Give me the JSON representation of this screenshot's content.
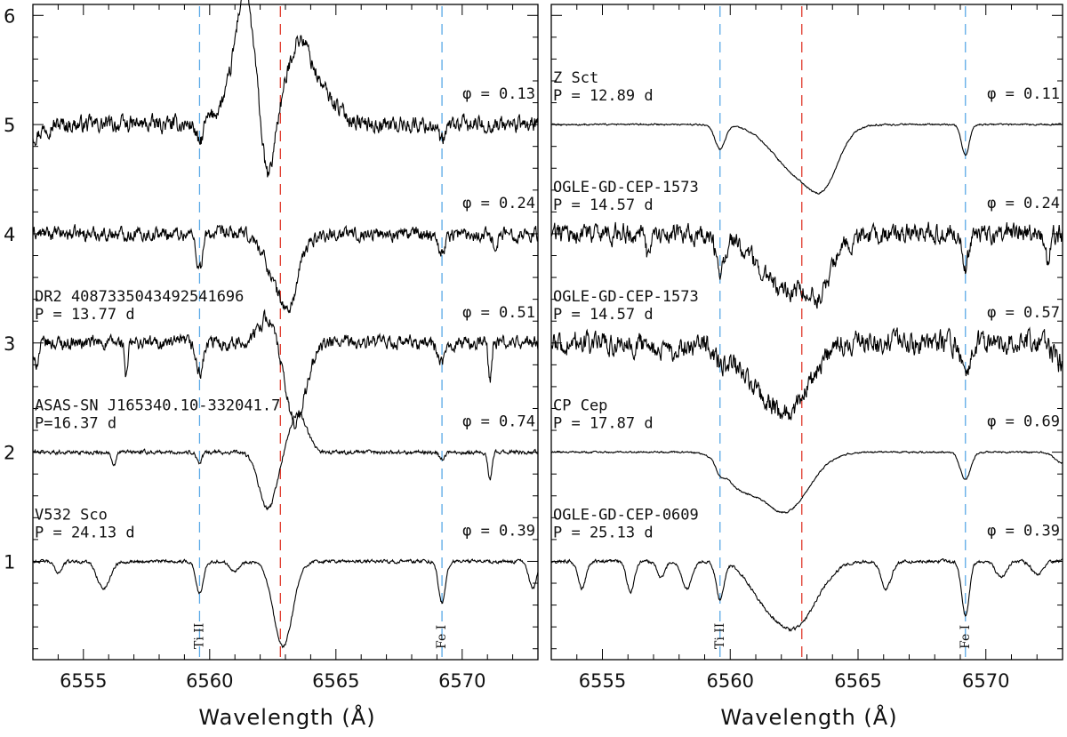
{
  "figure": {
    "xlabel": "Wavelength  (Å)"
  },
  "colors": {
    "spectrum": "#000000",
    "metal_line": "#5aa9e6",
    "halpha_line": "#e0392b",
    "axes": "#000000"
  },
  "chart_data": [
    {
      "type": "line",
      "panel": "left",
      "xlabel": "Wavelength  (Å)",
      "ylabel": "",
      "xlim": [
        6553.0,
        6573.0
      ],
      "ylim": [
        0.1,
        6.1
      ],
      "x_ticks": [
        6555,
        6560,
        6565,
        6570
      ],
      "y_ticks": [
        1,
        2,
        3,
        4,
        5,
        6
      ],
      "line_markers": [
        {
          "wavelength": 6559.6,
          "label": "Ti II",
          "color": "#5aa9e6"
        },
        {
          "wavelength": 6562.8,
          "label": "",
          "color": "#e0392b"
        },
        {
          "wavelength": 6569.2,
          "label": "Fe I",
          "color": "#5aa9e6"
        }
      ],
      "series": [
        {
          "name": "",
          "name2": "",
          "phase": "φ = 0.13",
          "offset": 5.0,
          "noise": 0.06,
          "features": [
            {
              "center": 6561.4,
              "depth": -1.0,
              "sigma": 0.35
            },
            {
              "center": 6561.0,
              "depth": -0.25,
              "sigma": 0.6
            },
            {
              "center": 6562.3,
              "depth": 0.55,
              "sigma": 0.22
            },
            {
              "center": 6563.5,
              "depth": -0.62,
              "sigma": 0.45
            },
            {
              "center": 6564.3,
              "depth": -0.3,
              "sigma": 0.7
            },
            {
              "center": 6559.6,
              "depth": 0.2,
              "sigma": 0.12
            },
            {
              "center": 6569.2,
              "depth": 0.17,
              "sigma": 0.13
            },
            {
              "center": 6553.0,
              "depth": 0.1,
              "sigma": 0.3
            }
          ]
        },
        {
          "name": "",
          "name2": "",
          "phase": "φ = 0.24",
          "offset": 4.0,
          "noise": 0.05,
          "features": [
            {
              "center": 6559.6,
              "depth": 0.32,
              "sigma": 0.12
            },
            {
              "center": 6562.9,
              "depth": 0.55,
              "sigma": 0.55
            },
            {
              "center": 6563.2,
              "depth": 0.2,
              "sigma": 0.25
            },
            {
              "center": 6569.2,
              "depth": 0.18,
              "sigma": 0.12
            },
            {
              "center": 6571.3,
              "depth": 0.1,
              "sigma": 0.1
            }
          ]
        },
        {
          "name": "DR2 4087335043492541696",
          "name2": "P = 13.77 d",
          "phase": "φ = 0.51",
          "offset": 3.0,
          "noise": 0.05,
          "features": [
            {
              "center": 6553.1,
              "depth": 0.2,
              "sigma": 0.12
            },
            {
              "center": 6556.7,
              "depth": 0.32,
              "sigma": 0.06
            },
            {
              "center": 6559.6,
              "depth": 0.28,
              "sigma": 0.14
            },
            {
              "center": 6562.3,
              "depth": -0.25,
              "sigma": 0.35
            },
            {
              "center": 6563.4,
              "depth": 0.72,
              "sigma": 0.42
            },
            {
              "center": 6569.2,
              "depth": 0.2,
              "sigma": 0.14
            },
            {
              "center": 6571.1,
              "depth": 0.32,
              "sigma": 0.06
            }
          ]
        },
        {
          "name": "ASAS-SN J165340.10-332041.7",
          "name2": "P=16.37 d",
          "phase": "φ = 0.74",
          "offset": 2.0,
          "noise": 0.015,
          "features": [
            {
              "center": 6556.2,
              "depth": 0.14,
              "sigma": 0.08
            },
            {
              "center": 6559.6,
              "depth": 0.1,
              "sigma": 0.1
            },
            {
              "center": 6562.3,
              "depth": 0.52,
              "sigma": 0.35
            },
            {
              "center": 6563.5,
              "depth": -0.35,
              "sigma": 0.35
            },
            {
              "center": 6569.2,
              "depth": 0.07,
              "sigma": 0.1
            },
            {
              "center": 6571.1,
              "depth": 0.25,
              "sigma": 0.08
            }
          ]
        },
        {
          "name": "V532 Sco",
          "name2": "P = 24.13 d",
          "phase": "φ = 0.39",
          "offset": 1.0,
          "noise": 0.012,
          "features": [
            {
              "center": 6554.0,
              "depth": 0.1,
              "sigma": 0.15
            },
            {
              "center": 6555.8,
              "depth": 0.25,
              "sigma": 0.25
            },
            {
              "center": 6559.6,
              "depth": 0.3,
              "sigma": 0.14
            },
            {
              "center": 6561.0,
              "depth": 0.08,
              "sigma": 0.2
            },
            {
              "center": 6562.9,
              "depth": 0.78,
              "sigma": 0.38
            },
            {
              "center": 6569.2,
              "depth": 0.38,
              "sigma": 0.14
            },
            {
              "center": 6572.8,
              "depth": 0.25,
              "sigma": 0.15
            }
          ]
        }
      ]
    },
    {
      "type": "line",
      "panel": "right",
      "xlabel": "Wavelength  (Å)",
      "ylabel": "",
      "xlim": [
        6553.0,
        6573.0
      ],
      "ylim": [
        0.1,
        6.1
      ],
      "x_ticks": [
        6555,
        6560,
        6565,
        6570
      ],
      "y_ticks": [
        1,
        2,
        3,
        4,
        5,
        6
      ],
      "line_markers": [
        {
          "wavelength": 6559.6,
          "label": "Ti II",
          "color": "#5aa9e6"
        },
        {
          "wavelength": 6562.8,
          "label": "",
          "color": "#e0392b"
        },
        {
          "wavelength": 6569.2,
          "label": "Fe I",
          "color": "#5aa9e6"
        }
      ],
      "series": [
        {
          "name": "Z Sct",
          "name2": "P = 12.89 d",
          "phase": "φ = 0.11",
          "offset": 5.0,
          "noise": 0.006,
          "features": [
            {
              "center": 6559.6,
              "depth": 0.22,
              "sigma": 0.2
            },
            {
              "center": 6562.7,
              "depth": 0.45,
              "sigma": 1.0
            },
            {
              "center": 6563.7,
              "depth": 0.32,
              "sigma": 0.55
            },
            {
              "center": 6569.2,
              "depth": 0.28,
              "sigma": 0.15
            }
          ]
        },
        {
          "name": "OGLE-GD-CEP-1573",
          "name2": "P = 14.57 d",
          "phase": "φ = 0.24",
          "offset": 4.0,
          "noise": 0.07,
          "features": [
            {
              "center": 6562.4,
              "depth": 0.55,
              "sigma": 1.15
            },
            {
              "center": 6563.6,
              "depth": 0.25,
              "sigma": 0.3
            },
            {
              "center": 6556.8,
              "depth": 0.25,
              "sigma": 0.08
            },
            {
              "center": 6559.6,
              "depth": 0.35,
              "sigma": 0.15
            },
            {
              "center": 6569.2,
              "depth": 0.3,
              "sigma": 0.13
            },
            {
              "center": 6572.4,
              "depth": 0.25,
              "sigma": 0.08
            }
          ]
        },
        {
          "name": "OGLE-GD-CEP-1573",
          "name2": "P = 14.57 d",
          "phase": "φ = 0.57",
          "offset": 3.0,
          "noise": 0.08,
          "features": [
            {
              "center": 6562.4,
              "depth": 0.55,
              "sigma": 0.8
            },
            {
              "center": 6561.0,
              "depth": 0.3,
              "sigma": 0.8
            },
            {
              "center": 6559.6,
              "depth": 0.15,
              "sigma": 0.2
            },
            {
              "center": 6569.2,
              "depth": 0.35,
              "sigma": 0.15
            },
            {
              "center": 6557.5,
              "depth": 0.1,
              "sigma": 0.6
            },
            {
              "center": 6573.0,
              "depth": 0.2,
              "sigma": 0.3
            }
          ]
        },
        {
          "name": "CP Cep",
          "name2": "P = 17.87 d",
          "phase": "φ = 0.69",
          "offset": 2.0,
          "noise": 0.006,
          "features": [
            {
              "center": 6562.1,
              "depth": 0.55,
              "sigma": 0.95
            },
            {
              "center": 6560.3,
              "depth": 0.25,
              "sigma": 0.6
            },
            {
              "center": 6559.6,
              "depth": 0.08,
              "sigma": 0.15
            },
            {
              "center": 6569.2,
              "depth": 0.25,
              "sigma": 0.2
            },
            {
              "center": 6573.0,
              "depth": 0.1,
              "sigma": 0.3
            }
          ]
        },
        {
          "name": "OGLE-GD-CEP-0609",
          "name2": "P = 25.13 d",
          "phase": "φ = 0.39",
          "offset": 1.0,
          "noise": 0.012,
          "features": [
            {
              "center": 6562.5,
              "depth": 0.6,
              "sigma": 0.85
            },
            {
              "center": 6561.2,
              "depth": 0.2,
              "sigma": 0.6
            },
            {
              "center": 6559.6,
              "depth": 0.35,
              "sigma": 0.15
            },
            {
              "center": 6569.2,
              "depth": 0.5,
              "sigma": 0.15
            },
            {
              "center": 6554.2,
              "depth": 0.25,
              "sigma": 0.15
            },
            {
              "center": 6556.1,
              "depth": 0.28,
              "sigma": 0.15
            },
            {
              "center": 6557.3,
              "depth": 0.15,
              "sigma": 0.15
            },
            {
              "center": 6558.3,
              "depth": 0.25,
              "sigma": 0.2
            },
            {
              "center": 6566.1,
              "depth": 0.25,
              "sigma": 0.2
            },
            {
              "center": 6570.6,
              "depth": 0.15,
              "sigma": 0.2
            },
            {
              "center": 6572.0,
              "depth": 0.12,
              "sigma": 0.2
            }
          ]
        }
      ]
    }
  ]
}
